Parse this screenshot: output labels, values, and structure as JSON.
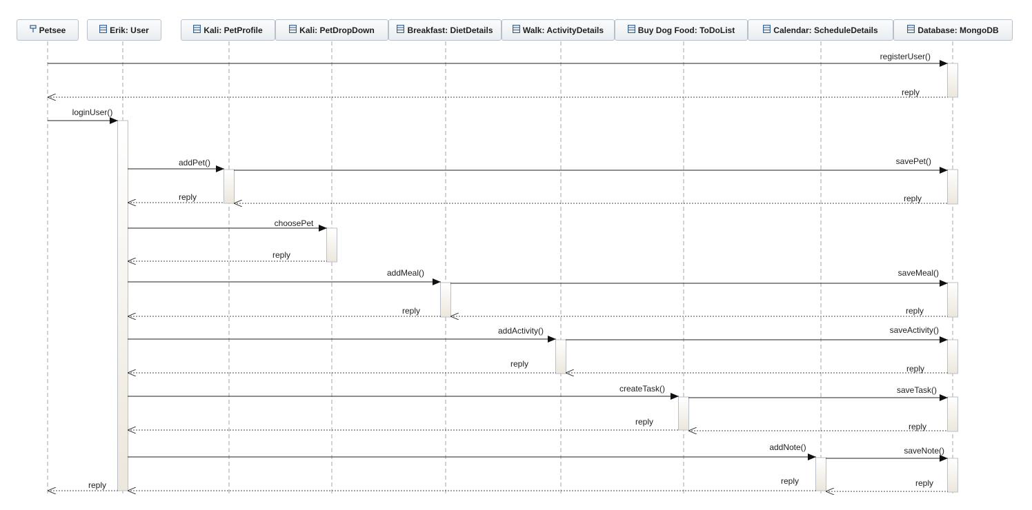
{
  "participants": [
    {
      "id": "petsee",
      "label": "Petsee",
      "icon": "actor-icon"
    },
    {
      "id": "erik",
      "label": "Erik: User",
      "icon": "class-icon"
    },
    {
      "id": "petprofile",
      "label": "Kali: PetProfile",
      "icon": "class-icon"
    },
    {
      "id": "petdropdown",
      "label": "Kali: PetDropDown",
      "icon": "class-icon"
    },
    {
      "id": "diet",
      "label": "Breakfast: DietDetails",
      "icon": "class-icon"
    },
    {
      "id": "activity",
      "label": "Walk: ActivityDetails",
      "icon": "class-icon"
    },
    {
      "id": "todo",
      "label": "Buy Dog Food: ToDoList",
      "icon": "class-icon"
    },
    {
      "id": "schedule",
      "label": "Calendar: ScheduleDetails",
      "icon": "class-icon"
    },
    {
      "id": "db",
      "label": "Database: MongoDB",
      "icon": "class-icon"
    }
  ],
  "messages": [
    {
      "from": "petsee",
      "to": "db",
      "label": "registerUser()",
      "type": "call"
    },
    {
      "from": "db",
      "to": "petsee",
      "label": "reply",
      "type": "reply"
    },
    {
      "from": "petsee",
      "to": "erik",
      "label": "loginUser()",
      "type": "call"
    },
    {
      "from": "erik",
      "to": "petprofile",
      "label": "addPet()",
      "type": "call"
    },
    {
      "from": "petprofile",
      "to": "db",
      "label": "savePet()",
      "type": "call"
    },
    {
      "from": "petprofile",
      "to": "erik",
      "label": "reply",
      "type": "reply"
    },
    {
      "from": "db",
      "to": "petprofile",
      "label": "reply",
      "type": "reply"
    },
    {
      "from": "erik",
      "to": "petdropdown",
      "label": "choosePet",
      "type": "call"
    },
    {
      "from": "petdropdown",
      "to": "erik",
      "label": "reply",
      "type": "reply"
    },
    {
      "from": "erik",
      "to": "diet",
      "label": "addMeal()",
      "type": "call"
    },
    {
      "from": "diet",
      "to": "db",
      "label": "saveMeal()",
      "type": "call"
    },
    {
      "from": "diet",
      "to": "erik",
      "label": "reply",
      "type": "reply"
    },
    {
      "from": "db",
      "to": "diet",
      "label": "reply",
      "type": "reply"
    },
    {
      "from": "erik",
      "to": "activity",
      "label": "addActivity()",
      "type": "call"
    },
    {
      "from": "activity",
      "to": "db",
      "label": "saveActivity()",
      "type": "call"
    },
    {
      "from": "activity",
      "to": "erik",
      "label": "reply",
      "type": "reply"
    },
    {
      "from": "db",
      "to": "activity",
      "label": "reply",
      "type": "reply"
    },
    {
      "from": "erik",
      "to": "todo",
      "label": "createTask()",
      "type": "call"
    },
    {
      "from": "todo",
      "to": "db",
      "label": "saveTask()",
      "type": "call"
    },
    {
      "from": "todo",
      "to": "erik",
      "label": "reply",
      "type": "reply"
    },
    {
      "from": "db",
      "to": "todo",
      "label": "reply",
      "type": "reply"
    },
    {
      "from": "erik",
      "to": "schedule",
      "label": "addNote()",
      "type": "call"
    },
    {
      "from": "schedule",
      "to": "db",
      "label": "saveNote()",
      "type": "call"
    },
    {
      "from": "erik",
      "to": "petsee",
      "label": "reply",
      "type": "reply"
    },
    {
      "from": "schedule",
      "to": "erik",
      "label": "reply",
      "type": "reply"
    },
    {
      "from": "db",
      "to": "schedule",
      "label": "reply",
      "type": "reply"
    }
  ],
  "colors": {
    "line": "#1e1e1e",
    "lifeline": "#a6a6a6",
    "box_border": "#b9bfc7",
    "activation_fill": "#f1ede4",
    "icon": "#2e5a86"
  }
}
